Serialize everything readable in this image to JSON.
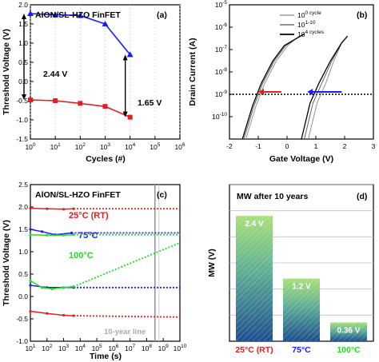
{
  "chart_data": [
    {
      "panel": "(a)",
      "type": "line",
      "title": "AlON/SL-HZO FinFET",
      "xlabel": "Cycles (#)",
      "ylabel": "Threshold Voltage (V)",
      "xscale": "log",
      "xlim": [
        1,
        1000000
      ],
      "ylim": [
        -1.5,
        2.0
      ],
      "xticks": [
        "10^0",
        "10^1",
        "10^2",
        "10^3",
        "10^4",
        "10^5",
        "10^6"
      ],
      "yticks": [
        "-1.5",
        "-1.0",
        "-0.5",
        "0.0",
        "0.5",
        "1.0",
        "1.5",
        "2.0"
      ],
      "series": [
        {
          "color": "#1a1aff",
          "marker": "triangle",
          "x": [
            1,
            10,
            100,
            1000,
            10000
          ],
          "y": [
            1.77,
            1.74,
            1.72,
            1.5,
            0.7
          ]
        },
        {
          "color": "#e02020",
          "marker": "square",
          "x": [
            1,
            10,
            100,
            1000,
            10000
          ],
          "y": [
            -0.48,
            -0.5,
            -0.57,
            -0.65,
            -0.93
          ]
        }
      ],
      "annotations": [
        "2.44 V",
        "1.65 V"
      ]
    },
    {
      "panel": "(b)",
      "type": "line",
      "xlabel": "Gate Voltage (V)",
      "ylabel": "Drain Current (A)",
      "yscale": "log",
      "xlim": [
        -2,
        3
      ],
      "ylim": [
        1e-11,
        1e-05
      ],
      "xticks": [
        "-2",
        "-1",
        "0",
        "1",
        "2",
        "3"
      ],
      "yticks": [
        "10^-10",
        "10^-9",
        "10^-8",
        "10^-7",
        "10^-6",
        "10^-5"
      ],
      "legend": [
        "10^0 cycle",
        "10^1-10^3 cycles",
        "10^4 cycles"
      ],
      "legend_position": "top-right",
      "reference_line": "1e-9"
    },
    {
      "panel": "(c)",
      "type": "line",
      "title": "AlON/SL-HZO FinFET",
      "xlabel": "Time (s)",
      "ylabel": "Threshold Voltage (V)",
      "xscale": "log",
      "xlim": [
        10,
        10000000000.0
      ],
      "ylim": [
        -1.0,
        2.5
      ],
      "xticks": [
        "10^1",
        "10^2",
        "10^3",
        "10^4",
        "10^5",
        "10^6",
        "10^7",
        "10^8",
        "10^9",
        "10^10"
      ],
      "yticks": [
        "-1.0",
        "-0.5",
        "0.0",
        "0.5",
        "1.0",
        "1.5",
        "2.0",
        "2.5"
      ],
      "temperatures": [
        {
          "label": "25°C (RT)",
          "color": "#e02020",
          "high_x": [
            10,
            100,
            1000,
            4000
          ],
          "high_y": [
            1.97,
            1.96,
            1.95,
            1.96
          ],
          "high_extrap": 1.96,
          "low_x": [
            10,
            100,
            1000,
            4000
          ],
          "low_y": [
            -0.33,
            -0.38,
            -0.42,
            -0.43
          ],
          "low_extrap": -0.46
        },
        {
          "label": "75°C",
          "color": "#1a1aff",
          "high_x": [
            10,
            50,
            300,
            3000
          ],
          "high_y": [
            1.5,
            1.45,
            1.38,
            1.42
          ],
          "high_extrap": 1.42,
          "low_x": [
            10,
            100,
            1000,
            4000
          ],
          "low_y": [
            0.25,
            0.2,
            0.2,
            0.2
          ],
          "low_extrap": 0.2
        },
        {
          "label": "100°C",
          "color": "#22dd22",
          "high_x": [
            10,
            100,
            1000,
            4000
          ],
          "high_y": [
            1.38,
            1.37,
            1.37,
            1.38
          ],
          "high_extrap": 1.38,
          "low_x": [
            10,
            50,
            200,
            1000,
            4000
          ],
          "low_y": [
            0.35,
            0.2,
            0.17,
            0.2,
            0.22
          ],
          "low_extrap_x": 10000000000.0,
          "low_extrap": 1.2
        }
      ],
      "annotation": "10-year line",
      "ten_year_s": 315000000.0
    },
    {
      "panel": "(d)",
      "type": "bar",
      "title": "MW after 10 years",
      "ylabel": "MW (V)",
      "ylim": [
        0,
        3.0
      ],
      "categories": [
        "25°C (RT)",
        "75°C",
        "100°C"
      ],
      "category_colors": [
        "#e02020",
        "#1a1aff",
        "#22dd22"
      ],
      "values": [
        2.4,
        1.2,
        0.36
      ],
      "value_labels": [
        "2.4 V",
        "1.2 V",
        "0.36 V"
      ]
    }
  ]
}
